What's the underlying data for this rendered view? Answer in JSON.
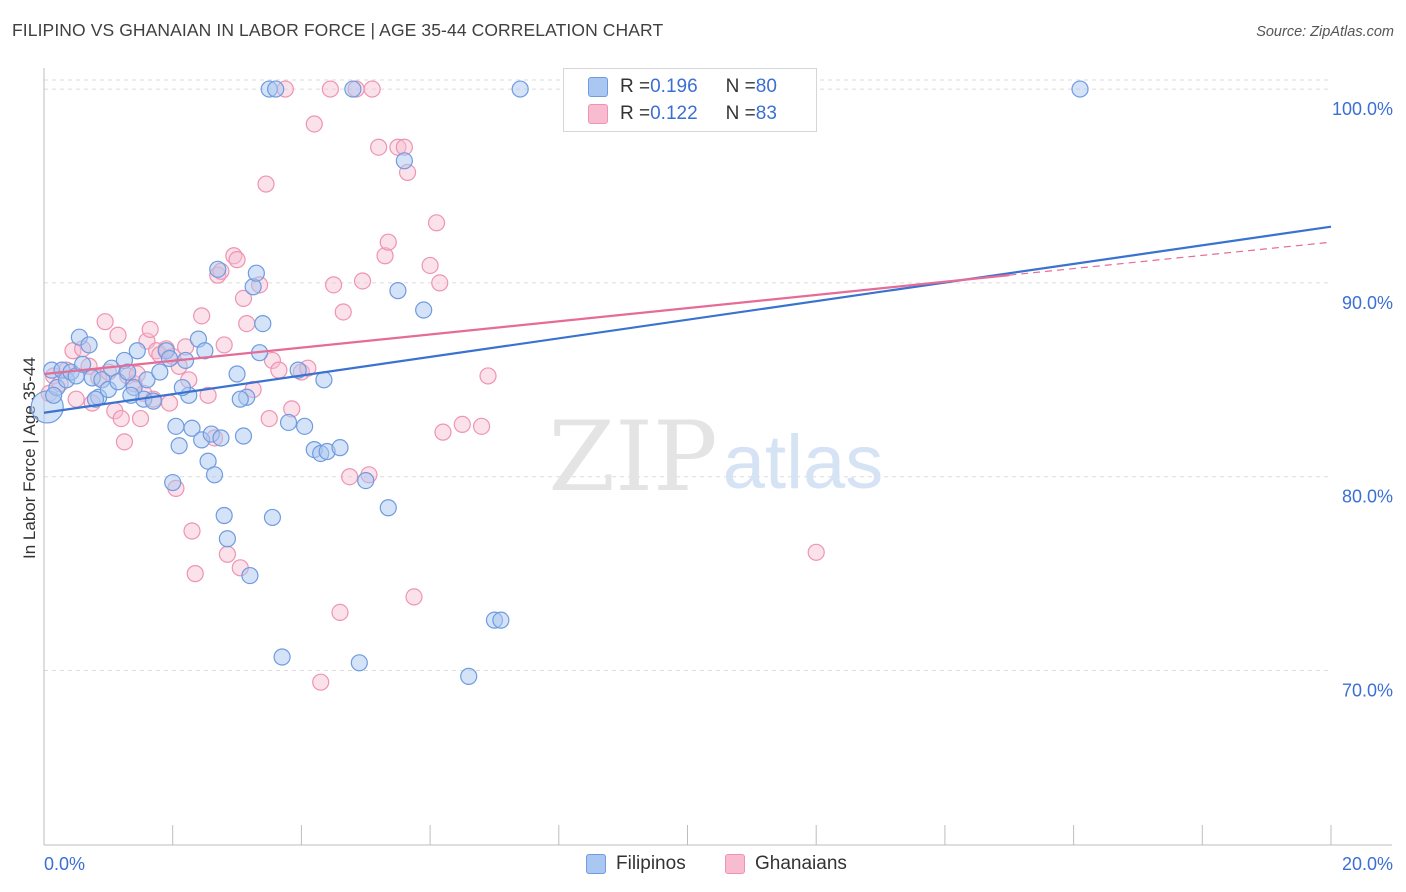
{
  "header": {
    "title": "FILIPINO VS GHANAIAN IN LABOR FORCE | AGE 35-44 CORRELATION CHART",
    "source": "Source: ZipAtlas.com"
  },
  "watermark": {
    "zip": "ZIP",
    "atlas": "atlas"
  },
  "legend": {
    "filipinos": {
      "r_label": "R = ",
      "r_value": "0.196",
      "n_label": "N = ",
      "n_value": "80"
    },
    "ghanaians": {
      "r_label": "R = ",
      "r_value": "0.122",
      "n_label": "N = ",
      "n_value": "83"
    }
  },
  "bottom_legend": {
    "filipinos": "Filipinos",
    "ghanaians": "Ghanaians"
  },
  "colors": {
    "filipinos_fill": "#a9c7f0",
    "filipinos_stroke": "#6f9be0",
    "filipinos_line": "#3a72d0",
    "ghanaians_fill": "#f7bcd0",
    "ghanaians_stroke": "#ee94b2",
    "ghanaians_line": "#e56c97",
    "tick_label": "#3b6fd4",
    "grid": "#dcdcdc"
  },
  "chart_data": {
    "type": "scatter",
    "ylabel": "In Labor Force | Age 35-44",
    "xlabel": "",
    "xlim": [
      0,
      20
    ],
    "ylim": [
      61,
      101.5
    ],
    "x_tick_labels": [
      "0.0%",
      "20.0%"
    ],
    "y_ticks": [
      70,
      80,
      90,
      100
    ],
    "y_tick_labels": [
      "70.0%",
      "80.0%",
      "90.0%",
      "100.0%"
    ],
    "grid": true,
    "series": [
      {
        "name": "Filipinos",
        "trend": {
          "x": [
            0,
            20
          ],
          "y": [
            83.3,
            92.9
          ]
        },
        "points": [
          [
            0.05,
            83.6
          ],
          [
            0.12,
            85.5
          ],
          [
            0.2,
            84.6
          ],
          [
            0.28,
            85.5
          ],
          [
            0.35,
            85.0
          ],
          [
            0.42,
            85.4
          ],
          [
            0.5,
            85.2
          ],
          [
            0.55,
            87.2
          ],
          [
            0.6,
            85.8
          ],
          [
            0.7,
            86.8
          ],
          [
            0.75,
            85.1
          ],
          [
            0.85,
            84.1
          ],
          [
            0.9,
            85.0
          ],
          [
            1.0,
            84.5
          ],
          [
            1.05,
            85.6
          ],
          [
            1.15,
            84.9
          ],
          [
            1.25,
            86.0
          ],
          [
            1.3,
            85.4
          ],
          [
            1.4,
            84.6
          ],
          [
            1.45,
            86.5
          ],
          [
            1.55,
            84.0
          ],
          [
            1.6,
            85.0
          ],
          [
            1.7,
            83.9
          ],
          [
            1.8,
            85.4
          ],
          [
            1.9,
            86.5
          ],
          [
            1.95,
            86.1
          ],
          [
            2.0,
            79.7
          ],
          [
            2.05,
            82.6
          ],
          [
            2.1,
            81.6
          ],
          [
            2.2,
            86.0
          ],
          [
            2.25,
            84.2
          ],
          [
            2.3,
            82.5
          ],
          [
            2.4,
            87.1
          ],
          [
            2.45,
            81.9
          ],
          [
            2.5,
            86.5
          ],
          [
            2.55,
            80.8
          ],
          [
            2.6,
            82.2
          ],
          [
            2.65,
            80.1
          ],
          [
            2.7,
            90.7
          ],
          [
            2.8,
            78.0
          ],
          [
            2.85,
            76.8
          ],
          [
            3.0,
            85.3
          ],
          [
            3.1,
            82.1
          ],
          [
            3.15,
            84.1
          ],
          [
            3.2,
            74.9
          ],
          [
            3.25,
            89.8
          ],
          [
            3.3,
            90.5
          ],
          [
            3.35,
            86.4
          ],
          [
            3.4,
            87.9
          ],
          [
            3.5,
            100
          ],
          [
            3.6,
            100
          ],
          [
            3.55,
            77.9
          ],
          [
            3.7,
            70.7
          ],
          [
            3.8,
            82.8
          ],
          [
            3.95,
            85.5
          ],
          [
            4.05,
            82.6
          ],
          [
            4.2,
            81.4
          ],
          [
            4.3,
            81.2
          ],
          [
            4.35,
            85.0
          ],
          [
            4.4,
            81.3
          ],
          [
            4.6,
            81.5
          ],
          [
            4.8,
            100
          ],
          [
            4.9,
            70.4
          ],
          [
            5.0,
            79.8
          ],
          [
            5.35,
            78.4
          ],
          [
            5.5,
            89.6
          ],
          [
            5.6,
            96.3
          ],
          [
            5.9,
            88.6
          ],
          [
            6.6,
            69.7
          ],
          [
            7.0,
            72.6
          ],
          [
            7.1,
            72.6
          ],
          [
            7.4,
            100
          ],
          [
            11.8,
            100
          ],
          [
            16.1,
            100
          ],
          [
            0.15,
            84.2
          ],
          [
            0.8,
            84.0
          ],
          [
            1.35,
            84.2
          ],
          [
            2.15,
            84.6
          ],
          [
            3.05,
            84.0
          ],
          [
            2.75,
            82.0
          ]
        ]
      },
      {
        "name": "Ghanaians",
        "trend": {
          "x": [
            0,
            15
          ],
          "y": [
            85.3,
            90.4
          ]
        },
        "trend_dashed": {
          "x": [
            15,
            20
          ],
          "y": [
            90.4,
            92.1
          ]
        },
        "points": [
          [
            0.08,
            84.3
          ],
          [
            0.15,
            85.2
          ],
          [
            0.25,
            84.8
          ],
          [
            0.35,
            85.5
          ],
          [
            0.45,
            86.5
          ],
          [
            0.5,
            84.0
          ],
          [
            0.6,
            86.6
          ],
          [
            0.7,
            85.7
          ],
          [
            0.75,
            83.8
          ],
          [
            0.85,
            85.1
          ],
          [
            0.95,
            88.0
          ],
          [
            1.0,
            85.4
          ],
          [
            1.1,
            83.4
          ],
          [
            1.15,
            87.3
          ],
          [
            1.2,
            83.0
          ],
          [
            1.25,
            81.8
          ],
          [
            1.3,
            85.2
          ],
          [
            1.4,
            84.8
          ],
          [
            1.45,
            85.3
          ],
          [
            1.5,
            83.0
          ],
          [
            1.55,
            84.3
          ],
          [
            1.6,
            87.0
          ],
          [
            1.65,
            87.6
          ],
          [
            1.75,
            86.5
          ],
          [
            1.8,
            86.3
          ],
          [
            1.9,
            86.6
          ],
          [
            1.95,
            83.8
          ],
          [
            2.0,
            86.2
          ],
          [
            2.05,
            79.4
          ],
          [
            2.1,
            85.7
          ],
          [
            2.2,
            86.7
          ],
          [
            2.25,
            85.0
          ],
          [
            2.3,
            77.2
          ],
          [
            2.35,
            75.0
          ],
          [
            2.45,
            88.3
          ],
          [
            2.55,
            84.2
          ],
          [
            2.65,
            82.0
          ],
          [
            2.7,
            90.4
          ],
          [
            2.75,
            90.6
          ],
          [
            2.8,
            86.8
          ],
          [
            2.85,
            76.0
          ],
          [
            2.95,
            91.4
          ],
          [
            3.0,
            91.2
          ],
          [
            3.05,
            75.3
          ],
          [
            3.1,
            89.2
          ],
          [
            3.15,
            87.9
          ],
          [
            3.25,
            84.5
          ],
          [
            3.35,
            89.9
          ],
          [
            3.45,
            95.1
          ],
          [
            3.5,
            83.0
          ],
          [
            3.55,
            86.0
          ],
          [
            3.65,
            85.5
          ],
          [
            3.75,
            100
          ],
          [
            3.85,
            83.5
          ],
          [
            4.0,
            85.4
          ],
          [
            4.1,
            85.6
          ],
          [
            4.2,
            98.2
          ],
          [
            4.3,
            69.4
          ],
          [
            4.45,
            100
          ],
          [
            4.5,
            89.9
          ],
          [
            4.6,
            73.0
          ],
          [
            4.65,
            88.5
          ],
          [
            4.75,
            80.0
          ],
          [
            4.85,
            100
          ],
          [
            4.95,
            90.1
          ],
          [
            5.05,
            80.1
          ],
          [
            5.1,
            100
          ],
          [
            5.2,
            97.0
          ],
          [
            5.3,
            91.4
          ],
          [
            5.35,
            92.1
          ],
          [
            5.5,
            97.0
          ],
          [
            5.6,
            97.0
          ],
          [
            5.65,
            95.7
          ],
          [
            5.75,
            73.8
          ],
          [
            6.0,
            90.9
          ],
          [
            6.1,
            93.1
          ],
          [
            6.15,
            90.0
          ],
          [
            6.2,
            82.3
          ],
          [
            6.5,
            82.7
          ],
          [
            6.8,
            82.6
          ],
          [
            6.9,
            85.2
          ],
          [
            12.0,
            76.1
          ],
          [
            1.7,
            84.0
          ]
        ]
      }
    ]
  }
}
